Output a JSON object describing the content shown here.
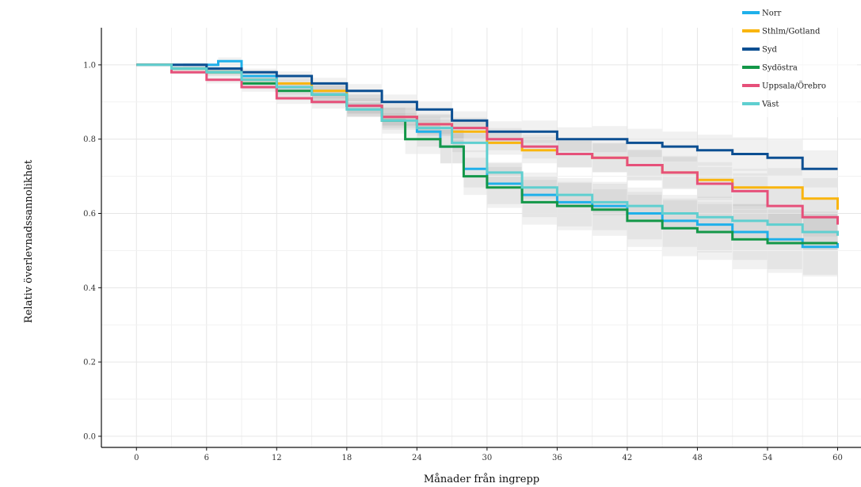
{
  "chart_data": {
    "type": "line",
    "step": true,
    "xlabel": "Månader från ingrepp",
    "ylabel": "Relativ överlevnadssannolikhet",
    "xlim": [
      -3,
      62
    ],
    "ylim": [
      -0.03,
      1.1
    ],
    "xticks": [
      0,
      6,
      12,
      18,
      24,
      30,
      36,
      42,
      48,
      54,
      60
    ],
    "yticks": [
      0.0,
      0.2,
      0.4,
      0.6,
      0.8,
      1.0
    ],
    "ytick_labels": [
      "0.0",
      "0.2",
      "0.4",
      "0.6",
      "0.8",
      "1.0"
    ],
    "grid": true,
    "confidence_bands": true,
    "legend_position": "top-right",
    "series": [
      {
        "name": "Norr",
        "color": "#1fb0ea",
        "points": [
          [
            0,
            1.0
          ],
          [
            4,
            1.0
          ],
          [
            7,
            1.01
          ],
          [
            9,
            0.97
          ],
          [
            12,
            0.94
          ],
          [
            15,
            0.92
          ],
          [
            18,
            0.89
          ],
          [
            21,
            0.86
          ],
          [
            24,
            0.82
          ],
          [
            26,
            0.78
          ],
          [
            28,
            0.72
          ],
          [
            30,
            0.68
          ],
          [
            33,
            0.65
          ],
          [
            36,
            0.63
          ],
          [
            39,
            0.62
          ],
          [
            42,
            0.6
          ],
          [
            45,
            0.58
          ],
          [
            48,
            0.57
          ],
          [
            51,
            0.55
          ],
          [
            54,
            0.53
          ],
          [
            57,
            0.51
          ],
          [
            60,
            0.52
          ]
        ],
        "ci_half": [
          0,
          0.005,
          0.01,
          0.015,
          0.02,
          0.025,
          0.03,
          0.035,
          0.04,
          0.045,
          0.05,
          0.055,
          0.06,
          0.065,
          0.065,
          0.07,
          0.07,
          0.075,
          0.075,
          0.08,
          0.08,
          0.085
        ]
      },
      {
        "name": "Sthlm/Gotland",
        "color": "#f9b50f",
        "points": [
          [
            0,
            1.0
          ],
          [
            3,
            0.99
          ],
          [
            6,
            0.98
          ],
          [
            9,
            0.96
          ],
          [
            12,
            0.95
          ],
          [
            15,
            0.93
          ],
          [
            18,
            0.89
          ],
          [
            21,
            0.86
          ],
          [
            24,
            0.84
          ],
          [
            27,
            0.82
          ],
          [
            30,
            0.79
          ],
          [
            33,
            0.77
          ],
          [
            36,
            0.76
          ],
          [
            39,
            0.75
          ],
          [
            42,
            0.73
          ],
          [
            45,
            0.71
          ],
          [
            48,
            0.69
          ],
          [
            51,
            0.67
          ],
          [
            54,
            0.67
          ],
          [
            57,
            0.64
          ],
          [
            60,
            0.61
          ]
        ],
        "ci_half": [
          0,
          0.005,
          0.01,
          0.012,
          0.015,
          0.02,
          0.022,
          0.025,
          0.028,
          0.03,
          0.032,
          0.035,
          0.037,
          0.04,
          0.042,
          0.045,
          0.048,
          0.05,
          0.052,
          0.055,
          0.058
        ]
      },
      {
        "name": "Syd",
        "color": "#0c4f92",
        "points": [
          [
            0,
            1.0
          ],
          [
            3,
            1.0
          ],
          [
            6,
            0.99
          ],
          [
            9,
            0.98
          ],
          [
            12,
            0.97
          ],
          [
            15,
            0.95
          ],
          [
            18,
            0.93
          ],
          [
            21,
            0.9
          ],
          [
            24,
            0.88
          ],
          [
            27,
            0.85
          ],
          [
            30,
            0.82
          ],
          [
            33,
            0.82
          ],
          [
            36,
            0.8
          ],
          [
            39,
            0.8
          ],
          [
            42,
            0.79
          ],
          [
            45,
            0.78
          ],
          [
            48,
            0.77
          ],
          [
            51,
            0.76
          ],
          [
            54,
            0.75
          ],
          [
            57,
            0.72
          ],
          [
            60,
            0.72
          ]
        ],
        "ci_half": [
          0,
          0.005,
          0.008,
          0.01,
          0.012,
          0.015,
          0.018,
          0.02,
          0.022,
          0.025,
          0.028,
          0.03,
          0.032,
          0.035,
          0.038,
          0.04,
          0.042,
          0.045,
          0.048,
          0.05,
          0.055
        ]
      },
      {
        "name": "Sydöstra",
        "color": "#139748",
        "points": [
          [
            0,
            1.0
          ],
          [
            3,
            0.99
          ],
          [
            6,
            0.98
          ],
          [
            9,
            0.95
          ],
          [
            12,
            0.93
          ],
          [
            15,
            0.92
          ],
          [
            18,
            0.89
          ],
          [
            21,
            0.85
          ],
          [
            23,
            0.8
          ],
          [
            26,
            0.78
          ],
          [
            28,
            0.7
          ],
          [
            30,
            0.67
          ],
          [
            33,
            0.63
          ],
          [
            36,
            0.62
          ],
          [
            39,
            0.61
          ],
          [
            42,
            0.58
          ],
          [
            45,
            0.56
          ],
          [
            48,
            0.55
          ],
          [
            51,
            0.53
          ],
          [
            54,
            0.52
          ],
          [
            57,
            0.52
          ],
          [
            60,
            0.52
          ]
        ],
        "ci_half": [
          0,
          0.005,
          0.01,
          0.015,
          0.02,
          0.025,
          0.03,
          0.035,
          0.04,
          0.045,
          0.05,
          0.055,
          0.06,
          0.065,
          0.07,
          0.07,
          0.075,
          0.075,
          0.08,
          0.08,
          0.085,
          0.09
        ]
      },
      {
        "name": "Uppsala/Örebro",
        "color": "#e6507a",
        "points": [
          [
            0,
            1.0
          ],
          [
            3,
            0.98
          ],
          [
            6,
            0.96
          ],
          [
            9,
            0.94
          ],
          [
            12,
            0.91
          ],
          [
            15,
            0.9
          ],
          [
            18,
            0.89
          ],
          [
            21,
            0.86
          ],
          [
            24,
            0.84
          ],
          [
            27,
            0.83
          ],
          [
            30,
            0.8
          ],
          [
            33,
            0.78
          ],
          [
            36,
            0.76
          ],
          [
            39,
            0.75
          ],
          [
            42,
            0.73
          ],
          [
            45,
            0.71
          ],
          [
            48,
            0.68
          ],
          [
            51,
            0.66
          ],
          [
            54,
            0.62
          ],
          [
            57,
            0.59
          ],
          [
            60,
            0.57
          ]
        ],
        "ci_half": [
          0,
          0.005,
          0.01,
          0.012,
          0.015,
          0.018,
          0.02,
          0.022,
          0.025,
          0.028,
          0.03,
          0.032,
          0.035,
          0.038,
          0.04,
          0.042,
          0.045,
          0.048,
          0.05,
          0.052,
          0.055
        ]
      },
      {
        "name": "Väst",
        "color": "#5fcfd0",
        "points": [
          [
            0,
            1.0
          ],
          [
            3,
            0.99
          ],
          [
            6,
            0.98
          ],
          [
            9,
            0.96
          ],
          [
            12,
            0.94
          ],
          [
            15,
            0.92
          ],
          [
            18,
            0.88
          ],
          [
            21,
            0.85
          ],
          [
            24,
            0.83
          ],
          [
            27,
            0.79
          ],
          [
            30,
            0.71
          ],
          [
            33,
            0.67
          ],
          [
            36,
            0.65
          ],
          [
            39,
            0.63
          ],
          [
            42,
            0.62
          ],
          [
            45,
            0.6
          ],
          [
            48,
            0.59
          ],
          [
            51,
            0.58
          ],
          [
            54,
            0.57
          ],
          [
            57,
            0.55
          ],
          [
            60,
            0.54
          ]
        ],
        "ci_half": [
          0,
          0.005,
          0.008,
          0.01,
          0.012,
          0.015,
          0.018,
          0.02,
          0.022,
          0.025,
          0.028,
          0.03,
          0.032,
          0.035,
          0.038,
          0.04,
          0.042,
          0.045,
          0.048,
          0.05,
          0.052
        ]
      }
    ]
  }
}
